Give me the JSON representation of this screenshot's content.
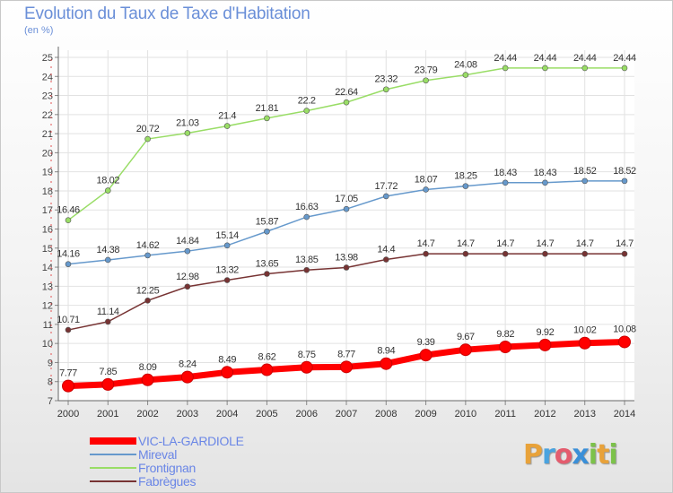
{
  "header": {
    "title": "Evolution du Taux de Taxe d'Habitation",
    "unit": "(en %)"
  },
  "logo": {
    "text": "Proxiti",
    "letters": [
      "P",
      "r",
      "o",
      "x",
      "i",
      "t",
      "i"
    ],
    "colors": [
      "#e8a23a",
      "#4aa3df",
      "#e45c6e",
      "#3a8fd8",
      "#7cc24a",
      "#e8a23a",
      "#7cc24a"
    ]
  },
  "chart_data": {
    "type": "line",
    "title": "Evolution du Taux de Taxe d'Habitation",
    "ylabel": "(en %)",
    "xlabel": "",
    "x": [
      2000,
      2001,
      2002,
      2003,
      2004,
      2005,
      2006,
      2007,
      2008,
      2009,
      2010,
      2011,
      2012,
      2013,
      2014
    ],
    "ylim": [
      7,
      25
    ],
    "yticks": [
      7,
      8,
      9,
      10,
      11,
      12,
      13,
      14,
      15,
      16,
      17,
      18,
      19,
      20,
      21,
      22,
      23,
      24,
      25
    ],
    "grid": true,
    "legend": "bottom-left",
    "series": [
      {
        "name": "VIC-LA-GARDIOLE",
        "color": "#ff0000",
        "emphasis": true,
        "values": [
          7.77,
          7.85,
          8.09,
          8.24,
          8.49,
          8.62,
          8.75,
          8.77,
          8.94,
          9.39,
          9.67,
          9.82,
          9.92,
          10.02,
          10.08
        ],
        "labels": [
          "7.77",
          "7.85",
          "8.09",
          "8.24",
          "8.49",
          "8.62",
          "8.75",
          "8.77",
          "8.94",
          "9.39",
          "9.67",
          "9.82",
          "9.92",
          "10.02",
          "10.08"
        ]
      },
      {
        "name": "Mireval",
        "color": "#6699cc",
        "emphasis": false,
        "values": [
          14.16,
          14.38,
          14.62,
          14.84,
          15.14,
          15.87,
          16.63,
          17.05,
          17.72,
          18.07,
          18.25,
          18.43,
          18.43,
          18.52,
          18.52
        ],
        "labels": [
          "14.16",
          "14.38",
          "14.62",
          "14.84",
          "15.14",
          "15.87",
          "16.63",
          "17.05",
          "17.72",
          "18.07",
          "18.25",
          "18.43",
          "18.43",
          "18.52",
          "18.52"
        ]
      },
      {
        "name": "Frontignan",
        "color": "#99dd66",
        "emphasis": false,
        "values": [
          16.46,
          18.02,
          20.72,
          21.03,
          21.4,
          21.81,
          22.2,
          22.64,
          23.32,
          23.79,
          24.08,
          24.44,
          24.44,
          24.44,
          24.44
        ],
        "labels": [
          "16.46",
          "18.02",
          "20.72",
          "21.03",
          "21.4",
          "21.81",
          "22.2",
          "22.64",
          "23.32",
          "23.79",
          "24.08",
          "24.44",
          "24.44",
          "24.44",
          "24.44"
        ]
      },
      {
        "name": "Fabrègues",
        "color": "#773333",
        "emphasis": false,
        "values": [
          10.71,
          11.14,
          12.25,
          12.98,
          13.32,
          13.65,
          13.85,
          13.98,
          14.4,
          14.7,
          14.7,
          14.7,
          14.7,
          14.7,
          14.7
        ],
        "labels": [
          "10.71",
          "11.14",
          "12.25",
          "12.98",
          "13.32",
          "13.65",
          "13.85",
          "13.98",
          "14.4",
          "14.7",
          "14.7",
          "14.7",
          "14.7",
          "14.7",
          "14.7"
        ]
      }
    ]
  }
}
